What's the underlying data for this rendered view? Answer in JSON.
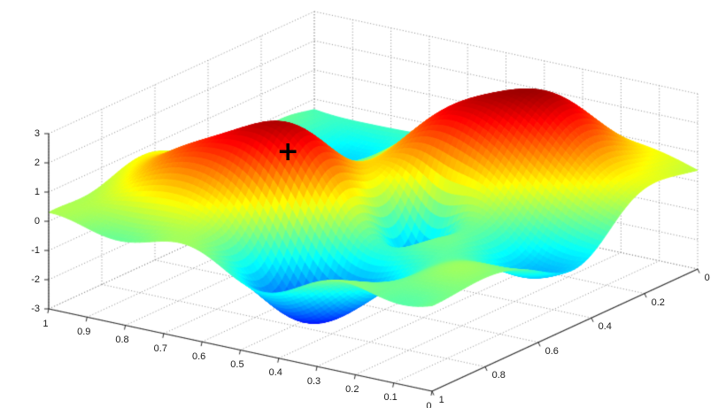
{
  "figure": {
    "background_color": "#ffffff"
  },
  "chart_data": {
    "type": "surface",
    "title": "",
    "colormap": "jet",
    "view": "3d",
    "x_axis": {
      "label": "",
      "range": [
        0,
        1
      ],
      "ticks": [
        0,
        0.1,
        0.2,
        0.3,
        0.4,
        0.5,
        0.6,
        0.7,
        0.8,
        0.9,
        1
      ],
      "direction": "zero-at-front-corner"
    },
    "y_axis": {
      "label": "",
      "range": [
        0,
        1
      ],
      "ticks": [
        0,
        0.2,
        0.4,
        0.6,
        0.8,
        1
      ],
      "direction": "zero-at-right-corner"
    },
    "z_axis": {
      "label": "",
      "range": [
        -3,
        3
      ],
      "ticks": [
        -3,
        -2,
        -1,
        0,
        1,
        2,
        3
      ]
    },
    "grid": {
      "visible": true,
      "style": "dotted",
      "color": "#8a8a8a"
    },
    "axis_color": "#2b2b2b",
    "tick_label_color": "#1a1a1a",
    "marker": {
      "symbol": "+",
      "color": "#000000",
      "x": 0.57,
      "y": 0.72,
      "z": 2.4
    },
    "surface_model": {
      "resolution": 80,
      "color_domain": [
        -3.3,
        3.3
      ],
      "z_clip": [
        -3.2,
        3.2
      ],
      "gaussians": [
        {
          "x": 0.6,
          "y": 0.7,
          "amp": 3.1,
          "sx": 0.13,
          "sy": 0.12
        },
        {
          "x": 0.3,
          "y": 0.25,
          "amp": 3.3,
          "sx": 0.2,
          "sy": 0.17
        },
        {
          "x": 0.45,
          "y": 0.82,
          "amp": -3.4,
          "sx": 0.12,
          "sy": 0.1
        },
        {
          "x": 0.36,
          "y": 0.53,
          "amp": -2.4,
          "sx": 0.06,
          "sy": 0.07
        },
        {
          "x": 0.1,
          "y": 0.42,
          "amp": -2.2,
          "sx": 0.13,
          "sy": 0.13
        },
        {
          "x": 0.86,
          "y": 0.72,
          "amp": 1.2,
          "sx": 0.15,
          "sy": 0.12
        },
        {
          "x": 0.8,
          "y": 0.15,
          "amp": -0.9,
          "sx": 0.16,
          "sy": 0.16
        }
      ],
      "ripple": {
        "amp": 0.25,
        "fx": 2.7,
        "fy": 2.3,
        "phase_x": 0.3,
        "phase_y": 1.2
      }
    }
  }
}
